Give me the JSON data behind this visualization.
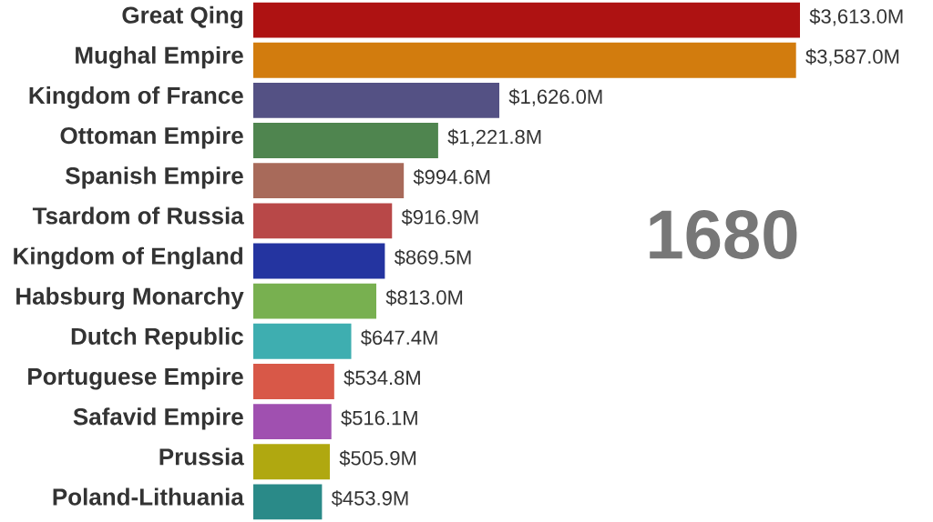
{
  "chart_data": {
    "type": "bar",
    "orientation": "horizontal",
    "categories": [
      "Great Qing",
      "Mughal Empire",
      "Kingdom of France",
      "Ottoman Empire",
      "Spanish Empire",
      "Tsardom of Russia",
      "Kingdom of England",
      "Habsburg Monarchy",
      "Dutch Republic",
      "Portuguese Empire",
      "Safavid Empire",
      "Prussia",
      "Poland-Lithuania"
    ],
    "values": [
      3613.0,
      3587.0,
      1626.0,
      1221.8,
      994.6,
      916.9,
      869.5,
      813.0,
      647.4,
      534.8,
      516.1,
      505.9,
      453.9
    ],
    "value_labels": [
      "$3,613.0M",
      "$3,587.0M",
      "$1,626.0M",
      "$1,221.8M",
      "$994.6M",
      "$916.9M",
      "$869.5M",
      "$813.0M",
      "$647.4M",
      "$534.8M",
      "$516.1M",
      "$505.9M",
      "$453.9M"
    ],
    "colors": [
      "#ae1212",
      "#d27c0e",
      "#545184",
      "#4f854f",
      "#a86a5a",
      "#b84848",
      "#2434a0",
      "#78b050",
      "#3eaeb0",
      "#d85848",
      "#a050b0",
      "#b0a810",
      "#2a8a88"
    ],
    "tick_labels": "y",
    "annotations": [
      "1680"
    ]
  }
}
